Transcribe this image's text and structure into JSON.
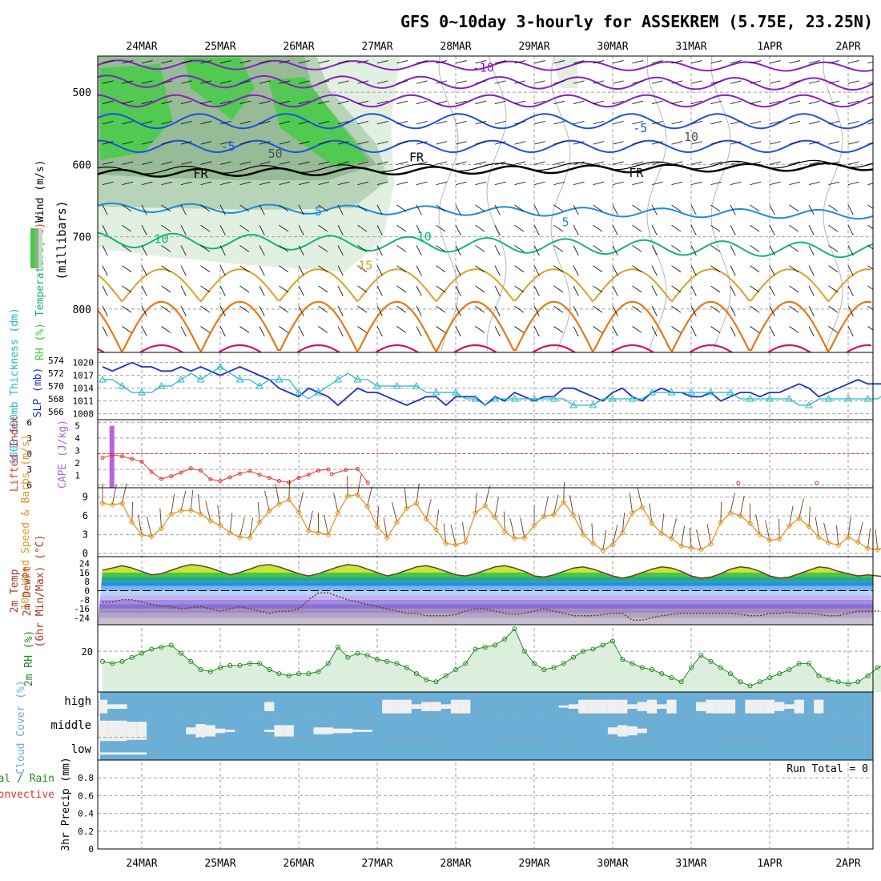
{
  "title": "GFS 0~10day 3-hourly for ASSEKREM (5.75E, 23.25N)",
  "colors": {
    "frame": "#000000",
    "grid": "#a0a0a0",
    "rh_light": "#e2f0e2",
    "rh_mid": "#b8d4b8",
    "rh_dark": "#88b088",
    "rh_bright": "#44cc44",
    "temp_neg10": "#8a1ec8",
    "temp_neg5": "#1e50dc",
    "temp_fr": "#000000",
    "temp_5": "#1e8cdc",
    "temp_10": "#14b478",
    "temp_15": "#dca028",
    "temp_20": "#e67814",
    "temp_25": "#d21464",
    "slp": "#1e32c8",
    "thickness": "#20b8c8",
    "lifted_index": "#e63232",
    "cape": "#b464dc",
    "wind10": "#e6962a",
    "barb10": "#6e3c1e",
    "temp2m_line": "#6e3c1e",
    "rh2m_line": "#228822",
    "rh2m_fill": "#dceedc",
    "cloud_fill": "#6baed6",
    "cloud_clear": "#f0f0f0",
    "label_gray": "#505050"
  },
  "chart_data": [
    {
      "id": "upper-air",
      "type": "contour",
      "dates": [
        "24MAR",
        "25MAR",
        "26MAR",
        "27MAR",
        "28MAR",
        "29MAR",
        "30MAR",
        "31MAR",
        "1APR",
        "2APR"
      ],
      "ylabel_parts": [
        {
          "text": "RH (%)",
          "color_key": "rh_bright"
        },
        {
          "text": "Temperature",
          "color_key": "temp_10"
        },
        {
          "text": "(°C)",
          "color_key": "lifted_index"
        },
        {
          "text": "Wind (m/s)",
          "color_key": "frame"
        }
      ],
      "ylabel_units": "(millibars)",
      "yticks": [
        500,
        600,
        700,
        800
      ],
      "ylim": [
        860,
        450
      ],
      "isotherm_labels": [
        {
          "text": "-10",
          "day": 4.35,
          "p": 466,
          "color_key": "temp_neg10"
        },
        {
          "text": "-5",
          "day": 1.1,
          "p": 575,
          "color_key": "temp_neg5"
        },
        {
          "text": "-5",
          "day": 6.35,
          "p": 550,
          "color_key": "temp_neg5"
        },
        {
          "text": "FR",
          "day": 0.75,
          "p": 613,
          "color_key": "temp_fr"
        },
        {
          "text": "FR",
          "day": 3.5,
          "p": 590,
          "color_key": "temp_fr"
        },
        {
          "text": "FR",
          "day": 6.3,
          "p": 612,
          "color_key": "temp_fr"
        },
        {
          "text": "5",
          "day": 2.25,
          "p": 665,
          "color_key": "temp_5"
        },
        {
          "text": "5",
          "day": 5.4,
          "p": 680,
          "color_key": "temp_5"
        },
        {
          "text": "10",
          "day": 0.25,
          "p": 703,
          "color_key": "temp_10"
        },
        {
          "text": "10",
          "day": 3.6,
          "p": 700,
          "color_key": "temp_10"
        },
        {
          "text": "15",
          "day": 2.85,
          "p": 740,
          "color_key": "temp_15"
        },
        {
          "text": "50",
          "day": 1.7,
          "p": 585,
          "color_key": "label_gray"
        },
        {
          "text": "10",
          "day": 7.0,
          "p": 562,
          "color_key": "label_gray"
        }
      ]
    },
    {
      "id": "slp-thickness",
      "type": "line",
      "ylabel_left": "1000-500mb Thickness (dm)",
      "ylabel_right": "SLP (mb)",
      "yticks_left": [
        566,
        568,
        570,
        572,
        574
      ],
      "yticks_right": [
        1008,
        1011,
        1014,
        1017,
        1020
      ],
      "thickness": [
        571,
        571,
        570,
        569,
        569,
        569,
        570,
        570,
        571,
        572,
        571,
        572,
        573,
        572,
        571,
        571,
        570,
        571,
        571,
        571,
        569,
        568,
        569,
        570,
        571,
        572,
        571,
        571,
        570,
        570,
        570,
        570,
        570,
        569,
        569,
        569,
        569,
        568,
        568,
        567,
        568,
        568,
        568,
        568,
        568,
        568,
        568,
        568,
        567,
        567,
        567,
        568,
        568,
        568,
        568,
        568,
        569,
        569,
        569,
        569,
        569,
        569,
        569,
        569,
        569,
        568,
        568,
        568,
        568,
        568,
        568,
        567,
        567,
        568,
        568,
        568,
        568,
        568,
        568,
        568,
        569
      ],
      "slp": [
        1019,
        1018,
        1019,
        1020,
        1019,
        1019,
        1018,
        1018,
        1019,
        1018,
        1019,
        1018,
        1017,
        1018,
        1019,
        1018,
        1017,
        1016,
        1014,
        1013,
        1012,
        1014,
        1013,
        1012,
        1010,
        1012,
        1014,
        1013,
        1013,
        1012,
        1011,
        1010,
        1011,
        1012,
        1012,
        1010,
        1012,
        1012,
        1012,
        1010,
        1012,
        1011,
        1013,
        1012,
        1011,
        1012,
        1012,
        1014,
        1014,
        1013,
        1012,
        1011,
        1013,
        1014,
        1012,
        1011,
        1013,
        1014,
        1013,
        1013,
        1012,
        1012,
        1013,
        1011,
        1012,
        1013,
        1013,
        1012,
        1013,
        1013,
        1014,
        1015,
        1014,
        1012,
        1013,
        1014,
        1015,
        1016,
        1015,
        1015,
        1015
      ]
    },
    {
      "id": "stability",
      "type": "line+bar",
      "ylabel_left": "Lifted Index",
      "ylabel_right": "CAPE (J/kg)",
      "yticks_left": [
        -6,
        -3,
        0,
        3,
        6
      ],
      "ytick_labels_left": [
        "6",
        "3",
        "0",
        "3",
        "6"
      ],
      "yticks_right": [
        1,
        2,
        3,
        4,
        5
      ],
      "lifted_index": [
        0.8,
        0.2,
        0.5,
        1.0,
        1.5,
        3.5,
        4.8,
        4.3,
        3.6,
        2.8,
        3.2,
        4.9,
        5.2,
        4.5,
        3.8,
        3.3,
        4.0,
        4.6,
        5.2,
        5.5,
        4.6,
        4.0,
        3.2,
        3.0
      ],
      "li_start_day": -0.5,
      "li_step_days": 0.125,
      "li_series_b": [
        {
          "day": 2.42,
          "v": 3.9
        },
        {
          "day": 2.6,
          "v": 3.1
        },
        {
          "day": 2.75,
          "v": 2.9
        },
        {
          "day": 2.88,
          "v": 5.5
        }
      ],
      "li_sparse": [
        {
          "day": 7.6,
          "v": 5.6
        },
        {
          "day": 8.6,
          "v": 5.6
        }
      ],
      "cape": [
        {
          "day": -0.38,
          "v": 5.0
        }
      ]
    },
    {
      "id": "wind10m",
      "type": "line",
      "ylabel": "10m Wind Speed & Barbs (m/s)",
      "yticks": [
        0,
        3,
        6,
        9
      ],
      "values": [
        8.0,
        7.8,
        8.0,
        5.0,
        3.0,
        2.7,
        4.0,
        6.3,
        6.8,
        6.9,
        6.3,
        5.2,
        4.5,
        3.3,
        2.6,
        2.5,
        5.0,
        6.8,
        7.9,
        8.6,
        6.6,
        3.6,
        3.3,
        3.0,
        6.5,
        9.2,
        9.4,
        7.5,
        4.3,
        2.5,
        5.0,
        7.2,
        8.0,
        5.5,
        3.8,
        1.6,
        1.4,
        1.8,
        6.5,
        7.6,
        5.8,
        3.5,
        2.4,
        2.5,
        4.5,
        5.9,
        6.2,
        8.2,
        6.1,
        3.0,
        1.6,
        0.5,
        1.4,
        3.3,
        6.5,
        7.4,
        4.8,
        3.2,
        2.4,
        1.2,
        0.9,
        0.6,
        1.5,
        5.0,
        6.5,
        6.0,
        4.8,
        3.0,
        2.1,
        2.3,
        4.4,
        5.6,
        4.3,
        2.6,
        1.7,
        1.3,
        2.6,
        1.8,
        0.8,
        0.6,
        1.2
      ]
    },
    {
      "id": "temp2m",
      "type": "area",
      "ylabel_parts": [
        "2m Temp",
        "2m DewPt",
        "(6hr Min/Max) (°C)"
      ],
      "yticks": [
        24,
        16,
        8,
        0,
        -8,
        -16,
        -24
      ],
      "temp": [
        18,
        20,
        22,
        20,
        17,
        14,
        15,
        18,
        21,
        23,
        22,
        20,
        17,
        14,
        16,
        19,
        22,
        23,
        21,
        18,
        15,
        13,
        15,
        18,
        21,
        23,
        22,
        19,
        16,
        13,
        15,
        18,
        21,
        22,
        20,
        17,
        14,
        13,
        15,
        18,
        21,
        22,
        20,
        17,
        13,
        12,
        14,
        17,
        20,
        21,
        19,
        16,
        13,
        11,
        13,
        16,
        19,
        21,
        20,
        17,
        13,
        11,
        12,
        15,
        19,
        21,
        20,
        17,
        13,
        11,
        12,
        15,
        18,
        21,
        20,
        17,
        15,
        13,
        14,
        13,
        12
      ],
      "dewpt": [
        -10,
        -10,
        -8,
        -8,
        -10,
        -12,
        -14,
        -14,
        -16,
        -15,
        -14,
        -16,
        -18,
        -16,
        -14,
        -16,
        -18,
        -20,
        -18,
        -18,
        -16,
        -8,
        -2,
        -2,
        -5,
        -8,
        -10,
        -12,
        -14,
        -16,
        -18,
        -20,
        -20,
        -22,
        -22,
        -22,
        -21,
        -18,
        -16,
        -16,
        -18,
        -20,
        -21,
        -20,
        -18,
        -16,
        -18,
        -20,
        -22,
        -22,
        -22,
        -21,
        -20,
        -20,
        -26,
        -26,
        -24,
        -22,
        -21,
        -20,
        -20,
        -20,
        -20,
        -20,
        -20,
        -21,
        -22,
        -22,
        -20,
        -20,
        -19,
        -20,
        -20,
        -21,
        -22,
        -22,
        -20,
        -18,
        -18,
        -18,
        -19
      ]
    },
    {
      "id": "rh2m",
      "type": "area",
      "ylabel": "2m RH (%)",
      "yticks": [
        20
      ],
      "ylim": [
        0,
        33
      ],
      "values": [
        15,
        14,
        15,
        17,
        19,
        21,
        22,
        23,
        19,
        15,
        11,
        10,
        12,
        13,
        13,
        14,
        14,
        11,
        9,
        8,
        9,
        9,
        10,
        14,
        22,
        17,
        19,
        18,
        16,
        15,
        14,
        12,
        9,
        6,
        5,
        8,
        11,
        14,
        21,
        22,
        23,
        26,
        31,
        20,
        14,
        11,
        12,
        14,
        17,
        20,
        21,
        23,
        25,
        16,
        14,
        12,
        11,
        9,
        7,
        5,
        12,
        18,
        15,
        12,
        9,
        5,
        3,
        5,
        7,
        9,
        11,
        14,
        14,
        8,
        6,
        5,
        4,
        5,
        8,
        12,
        14
      ]
    },
    {
      "id": "cloud",
      "type": "stacked-bar",
      "ylabel": "Cloud Cover (%)",
      "levels": [
        "high",
        "middle",
        "low"
      ],
      "high_clear": [
        0.6,
        0.2,
        0.2,
        0,
        0,
        0,
        0,
        0,
        0,
        0,
        0,
        0,
        0,
        0,
        0,
        0,
        0,
        0.4,
        0,
        0,
        0,
        0,
        0,
        0,
        0,
        0,
        0,
        0,
        0,
        0.6,
        0.6,
        0.6,
        0.2,
        0.4,
        0.4,
        0.2,
        0.6,
        0.6,
        0,
        0,
        0,
        0,
        0,
        0,
        0,
        0,
        0,
        0.1,
        0.2,
        0.6,
        0.6,
        0.6,
        0.6,
        0.6,
        0.2,
        0.4,
        0.6,
        0.2,
        0.6,
        0,
        0,
        0.4,
        0.6,
        0.6,
        0.6,
        0,
        0.6,
        0.6,
        0.6,
        0.4,
        0.2,
        0.6,
        0,
        0.6,
        0,
        0,
        0,
        0,
        0,
        0,
        0
      ],
      "mid_clear": [
        0.9,
        0.9,
        0.9,
        0.8,
        0.8,
        0,
        0,
        0,
        0,
        0.3,
        0.6,
        0.5,
        0.2,
        0.1,
        0,
        0,
        0,
        0.1,
        0.5,
        0.5,
        0,
        0,
        0.3,
        0.3,
        0.2,
        0.2,
        0.1,
        0.1,
        0,
        0,
        0,
        0,
        0,
        0,
        0,
        0,
        0,
        0,
        0,
        0,
        0,
        0,
        0,
        0,
        0,
        0,
        0,
        0,
        0,
        0,
        0,
        0,
        0.3,
        0.5,
        0.4,
        0.2,
        0,
        0,
        0,
        0,
        0,
        0,
        0,
        0,
        0,
        0,
        0,
        0,
        0,
        0,
        0,
        0,
        0,
        0,
        0,
        0,
        0,
        0,
        0,
        0,
        0
      ],
      "low_clear": [
        0.1,
        0.1,
        0.1,
        0.1,
        0.1,
        0,
        0,
        0,
        0,
        0,
        0,
        0,
        0,
        0,
        0,
        0,
        0,
        0,
        0,
        0,
        0,
        0,
        0,
        0,
        0,
        0,
        0,
        0,
        0,
        0,
        0,
        0,
        0,
        0,
        0,
        0,
        0,
        0,
        0,
        0,
        0,
        0,
        0,
        0,
        0,
        0,
        0,
        0,
        0,
        0,
        0,
        0,
        0,
        0,
        0,
        0,
        0,
        0,
        0,
        0,
        0,
        0,
        0,
        0,
        0,
        0,
        0,
        0,
        0,
        0,
        0,
        0,
        0,
        0,
        0,
        0,
        0,
        0,
        0,
        0,
        0
      ]
    },
    {
      "id": "precip",
      "type": "bar",
      "ylabel_parts": [
        {
          "text": "Total / Rain",
          "color_key": "rh2m_line"
        },
        {
          "text": "Convective",
          "color_key": "lifted_index"
        }
      ],
      "ylabel_units": "3hr Precip (mm)",
      "yticks": [
        0,
        0.2,
        0.4,
        0.6,
        0.8
      ],
      "ylim": [
        0,
        1
      ],
      "run_total": "Run Total = 0",
      "values": []
    }
  ]
}
